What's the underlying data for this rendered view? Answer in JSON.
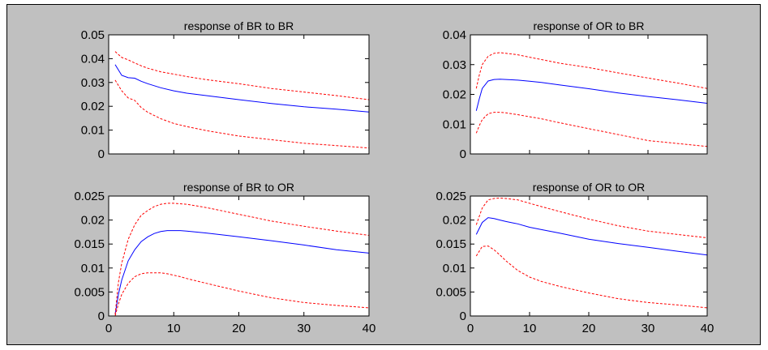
{
  "chart_data": [
    {
      "type": "line",
      "title": "response of BR to BR",
      "xlim": [
        0,
        40
      ],
      "ylim": [
        0,
        0.05
      ],
      "yticks": [
        "0",
        "0.01",
        "0.02",
        "0.03",
        "0.04",
        "0.05"
      ],
      "xticks": [],
      "series": [
        {
          "style": "solid",
          "color": "#0000ff",
          "x": [
            1,
            2,
            3,
            4,
            5,
            6,
            8,
            10,
            12,
            15,
            20,
            25,
            30,
            35,
            40
          ],
          "y": [
            0.0375,
            0.033,
            0.032,
            0.0318,
            0.0305,
            0.0295,
            0.0278,
            0.0265,
            0.0255,
            0.0245,
            0.0228,
            0.0212,
            0.0198,
            0.0188,
            0.0176
          ]
        },
        {
          "style": "dashed",
          "color": "#ff0000",
          "x": [
            1,
            2,
            3,
            4,
            5,
            6,
            8,
            10,
            12,
            15,
            20,
            25,
            30,
            35,
            40
          ],
          "y": [
            0.043,
            0.0405,
            0.0395,
            0.0382,
            0.037,
            0.036,
            0.0345,
            0.0335,
            0.0325,
            0.0312,
            0.0295,
            0.0275,
            0.026,
            0.0245,
            0.0228
          ]
        },
        {
          "style": "dashed",
          "color": "#ff0000",
          "x": [
            1,
            2,
            3,
            4,
            5,
            6,
            8,
            10,
            12,
            15,
            20,
            25,
            30,
            35,
            40
          ],
          "y": [
            0.031,
            0.0265,
            0.0235,
            0.0225,
            0.0195,
            0.0175,
            0.0148,
            0.0128,
            0.0115,
            0.0098,
            0.0075,
            0.006,
            0.0045,
            0.0035,
            0.0025
          ]
        }
      ]
    },
    {
      "type": "line",
      "title": "response of OR to BR",
      "xlim": [
        0,
        40
      ],
      "ylim": [
        0,
        0.04
      ],
      "yticks": [
        "0",
        "0.01",
        "0.02",
        "0.03",
        "0.04"
      ],
      "xticks": [],
      "series": [
        {
          "style": "solid",
          "color": "#0000ff",
          "x": [
            1,
            1.5,
            2,
            3,
            4,
            5,
            6,
            8,
            10,
            12,
            15,
            20,
            25,
            30,
            35,
            40
          ],
          "y": [
            0.0145,
            0.0185,
            0.022,
            0.0245,
            0.025,
            0.0251,
            0.025,
            0.0248,
            0.0244,
            0.024,
            0.0232,
            0.0219,
            0.0205,
            0.0193,
            0.0182,
            0.017
          ]
        },
        {
          "style": "dashed",
          "color": "#ff0000",
          "x": [
            1,
            1.5,
            2,
            3,
            4,
            5,
            6,
            8,
            10,
            12,
            15,
            20,
            25,
            30,
            35,
            40
          ],
          "y": [
            0.022,
            0.0265,
            0.03,
            0.0328,
            0.0338,
            0.034,
            0.0338,
            0.0333,
            0.0325,
            0.0317,
            0.0305,
            0.029,
            0.0272,
            0.0255,
            0.0238,
            0.022
          ]
        },
        {
          "style": "dashed",
          "color": "#ff0000",
          "x": [
            1,
            1.5,
            2,
            3,
            4,
            5,
            6,
            8,
            10,
            12,
            15,
            20,
            25,
            30,
            35,
            40
          ],
          "y": [
            0.007,
            0.0095,
            0.0115,
            0.0135,
            0.014,
            0.014,
            0.0138,
            0.0132,
            0.0125,
            0.0118,
            0.0105,
            0.0085,
            0.0065,
            0.0045,
            0.0035,
            0.0025
          ]
        }
      ]
    },
    {
      "type": "line",
      "title": "response of BR to OR",
      "xlim": [
        0,
        40
      ],
      "ylim": [
        0,
        0.025
      ],
      "yticks": [
        "0",
        "0.005",
        "0.01",
        "0.015",
        "0.02",
        "0.025"
      ],
      "xticks": [
        "0",
        "10",
        "20",
        "30",
        "40"
      ],
      "series": [
        {
          "style": "solid",
          "color": "#0000ff",
          "x": [
            1,
            1.5,
            2,
            3,
            4,
            5,
            6,
            7,
            8,
            9,
            10,
            11,
            12,
            15,
            20,
            25,
            30,
            35,
            40
          ],
          "y": [
            0.0003,
            0.0045,
            0.0075,
            0.0115,
            0.0138,
            0.0155,
            0.0165,
            0.0172,
            0.0176,
            0.0178,
            0.0178,
            0.0178,
            0.0177,
            0.0173,
            0.0165,
            0.0157,
            0.0148,
            0.0138,
            0.0131
          ]
        },
        {
          "style": "dashed",
          "color": "#ff0000",
          "x": [
            1,
            1.5,
            2,
            3,
            4,
            5,
            6,
            7,
            8,
            9,
            10,
            11,
            12,
            15,
            20,
            25,
            30,
            35,
            40
          ],
          "y": [
            0.0003,
            0.007,
            0.011,
            0.016,
            0.019,
            0.021,
            0.022,
            0.0228,
            0.0233,
            0.0235,
            0.0235,
            0.0234,
            0.0233,
            0.0226,
            0.0212,
            0.0198,
            0.0187,
            0.0177,
            0.0168
          ]
        },
        {
          "style": "dashed",
          "color": "#ff0000",
          "x": [
            1,
            1.5,
            2,
            3,
            4,
            5,
            6,
            7,
            8,
            9,
            10,
            11,
            12,
            15,
            20,
            25,
            30,
            35,
            40
          ],
          "y": [
            0.0,
            0.0025,
            0.0045,
            0.0068,
            0.0082,
            0.0088,
            0.009,
            0.009,
            0.009,
            0.0088,
            0.0085,
            0.0082,
            0.0078,
            0.0068,
            0.0052,
            0.0038,
            0.0028,
            0.0022,
            0.0017
          ]
        }
      ]
    },
    {
      "type": "line",
      "title": "response of OR to OR",
      "xlim": [
        0,
        40
      ],
      "ylim": [
        0,
        0.025
      ],
      "yticks": [
        "0",
        "0.005",
        "0.01",
        "0.015",
        "0.02",
        "0.025"
      ],
      "xticks": [
        "0",
        "10",
        "20",
        "30",
        "40"
      ],
      "series": [
        {
          "style": "solid",
          "color": "#0000ff",
          "x": [
            1,
            2,
            3,
            4,
            5,
            6,
            8,
            10,
            12,
            15,
            20,
            25,
            30,
            35,
            40
          ],
          "y": [
            0.017,
            0.0195,
            0.0205,
            0.0203,
            0.02,
            0.0197,
            0.0192,
            0.0185,
            0.018,
            0.0173,
            0.016,
            0.0151,
            0.0143,
            0.0135,
            0.0127
          ]
        },
        {
          "style": "dashed",
          "color": "#ff0000",
          "x": [
            1,
            2,
            3,
            4,
            5,
            6,
            8,
            10,
            12,
            15,
            20,
            25,
            30,
            35,
            40
          ],
          "y": [
            0.019,
            0.0225,
            0.0242,
            0.0245,
            0.0246,
            0.0245,
            0.0242,
            0.0235,
            0.0228,
            0.0218,
            0.0202,
            0.0188,
            0.0177,
            0.017,
            0.0163
          ]
        },
        {
          "style": "dashed",
          "color": "#ff0000",
          "x": [
            1,
            2,
            3,
            4,
            5,
            6,
            8,
            10,
            12,
            15,
            20,
            25,
            30,
            35,
            40
          ],
          "y": [
            0.0125,
            0.0145,
            0.0146,
            0.0138,
            0.0127,
            0.0115,
            0.0095,
            0.0081,
            0.0072,
            0.0062,
            0.0048,
            0.0036,
            0.0028,
            0.0023,
            0.0017
          ]
        }
      ]
    }
  ]
}
